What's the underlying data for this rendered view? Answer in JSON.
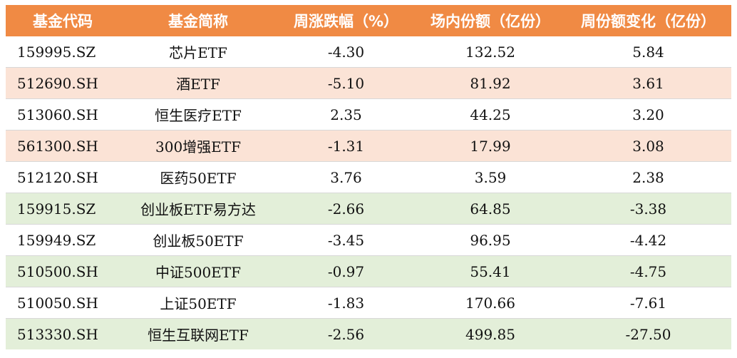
{
  "headers": [
    "基金代码",
    "基金简称",
    "周涨跌幅（%）",
    "场内份额（亿份）",
    "周份额变化（亿份）"
  ],
  "colors": {
    "header_bg": "#f08a44",
    "header_text": "#ffffff",
    "row_orange": "#fbe3d6",
    "row_green": "#e3efd9",
    "row_white": "#ffffff"
  },
  "rows": [
    {
      "code": "159995.SZ",
      "name": "芯片ETF",
      "weekly_change": "-4.30",
      "shares": "132.52",
      "share_change": "5.84",
      "bg": "white"
    },
    {
      "code": "512690.SH",
      "name": "酒ETF",
      "weekly_change": "-5.10",
      "shares": "81.92",
      "share_change": "3.61",
      "bg": "orange"
    },
    {
      "code": "513060.SH",
      "name": "恒生医疗ETF",
      "weekly_change": "2.35",
      "shares": "44.25",
      "share_change": "3.20",
      "bg": "white"
    },
    {
      "code": "561300.SH",
      "name": "300增强ETF",
      "weekly_change": "-1.31",
      "shares": "17.99",
      "share_change": "3.08",
      "bg": "orange"
    },
    {
      "code": "512120.SH",
      "name": "医药50ETF",
      "weekly_change": "3.76",
      "shares": "3.59",
      "share_change": "2.38",
      "bg": "white"
    },
    {
      "code": "159915.SZ",
      "name": "创业板ETF易方达",
      "weekly_change": "-2.66",
      "shares": "64.85",
      "share_change": "-3.38",
      "bg": "green"
    },
    {
      "code": "159949.SZ",
      "name": "创业板50ETF",
      "weekly_change": "-3.45",
      "shares": "96.95",
      "share_change": "-4.42",
      "bg": "white"
    },
    {
      "code": "510500.SH",
      "name": "中证500ETF",
      "weekly_change": "-0.97",
      "shares": "55.41",
      "share_change": "-4.75",
      "bg": "green"
    },
    {
      "code": "510050.SH",
      "name": "上证50ETF",
      "weekly_change": "-1.83",
      "shares": "170.66",
      "share_change": "-7.61",
      "bg": "white"
    },
    {
      "code": "513330.SH",
      "name": "恒生互联网ETF",
      "weekly_change": "-2.56",
      "shares": "499.85",
      "share_change": "-27.50",
      "bg": "green"
    }
  ]
}
